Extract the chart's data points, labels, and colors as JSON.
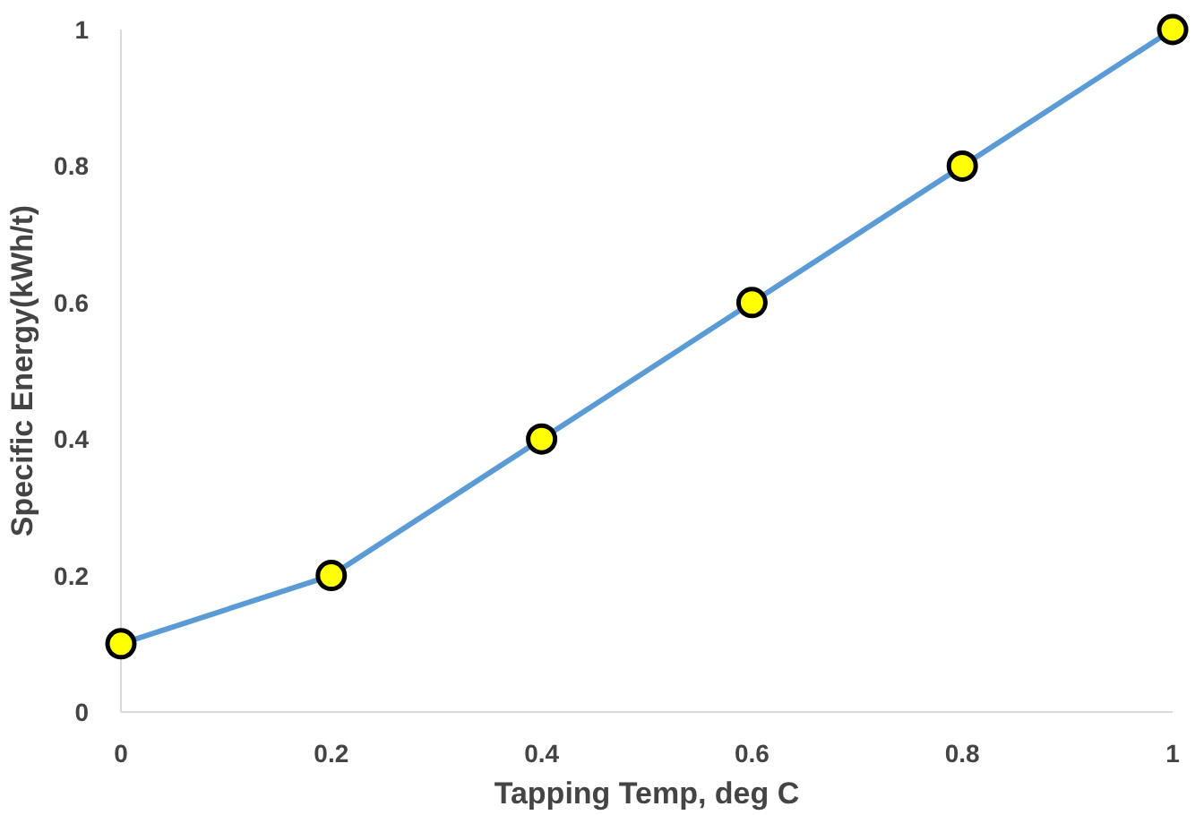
{
  "chart_data": {
    "type": "line",
    "xlabel": "Tapping Temp, deg C",
    "ylabel": "Specific Energy(kWh/t)",
    "x": [
      0,
      0.2,
      0.4,
      0.6,
      0.8,
      1
    ],
    "series": [
      {
        "color": "#5b9bd5",
        "values": [
          0.1,
          0.2,
          0.4,
          0.6,
          0.8,
          1
        ]
      }
    ],
    "xlim": [
      0,
      1
    ],
    "ylim": [
      0,
      1
    ],
    "xticks": [
      0,
      0.2,
      0.4,
      0.6,
      0.8,
      1
    ],
    "yticks": [
      0,
      0.2,
      0.4,
      0.6,
      0.8,
      1
    ],
    "marker": "circle",
    "line_style": "solid"
  }
}
